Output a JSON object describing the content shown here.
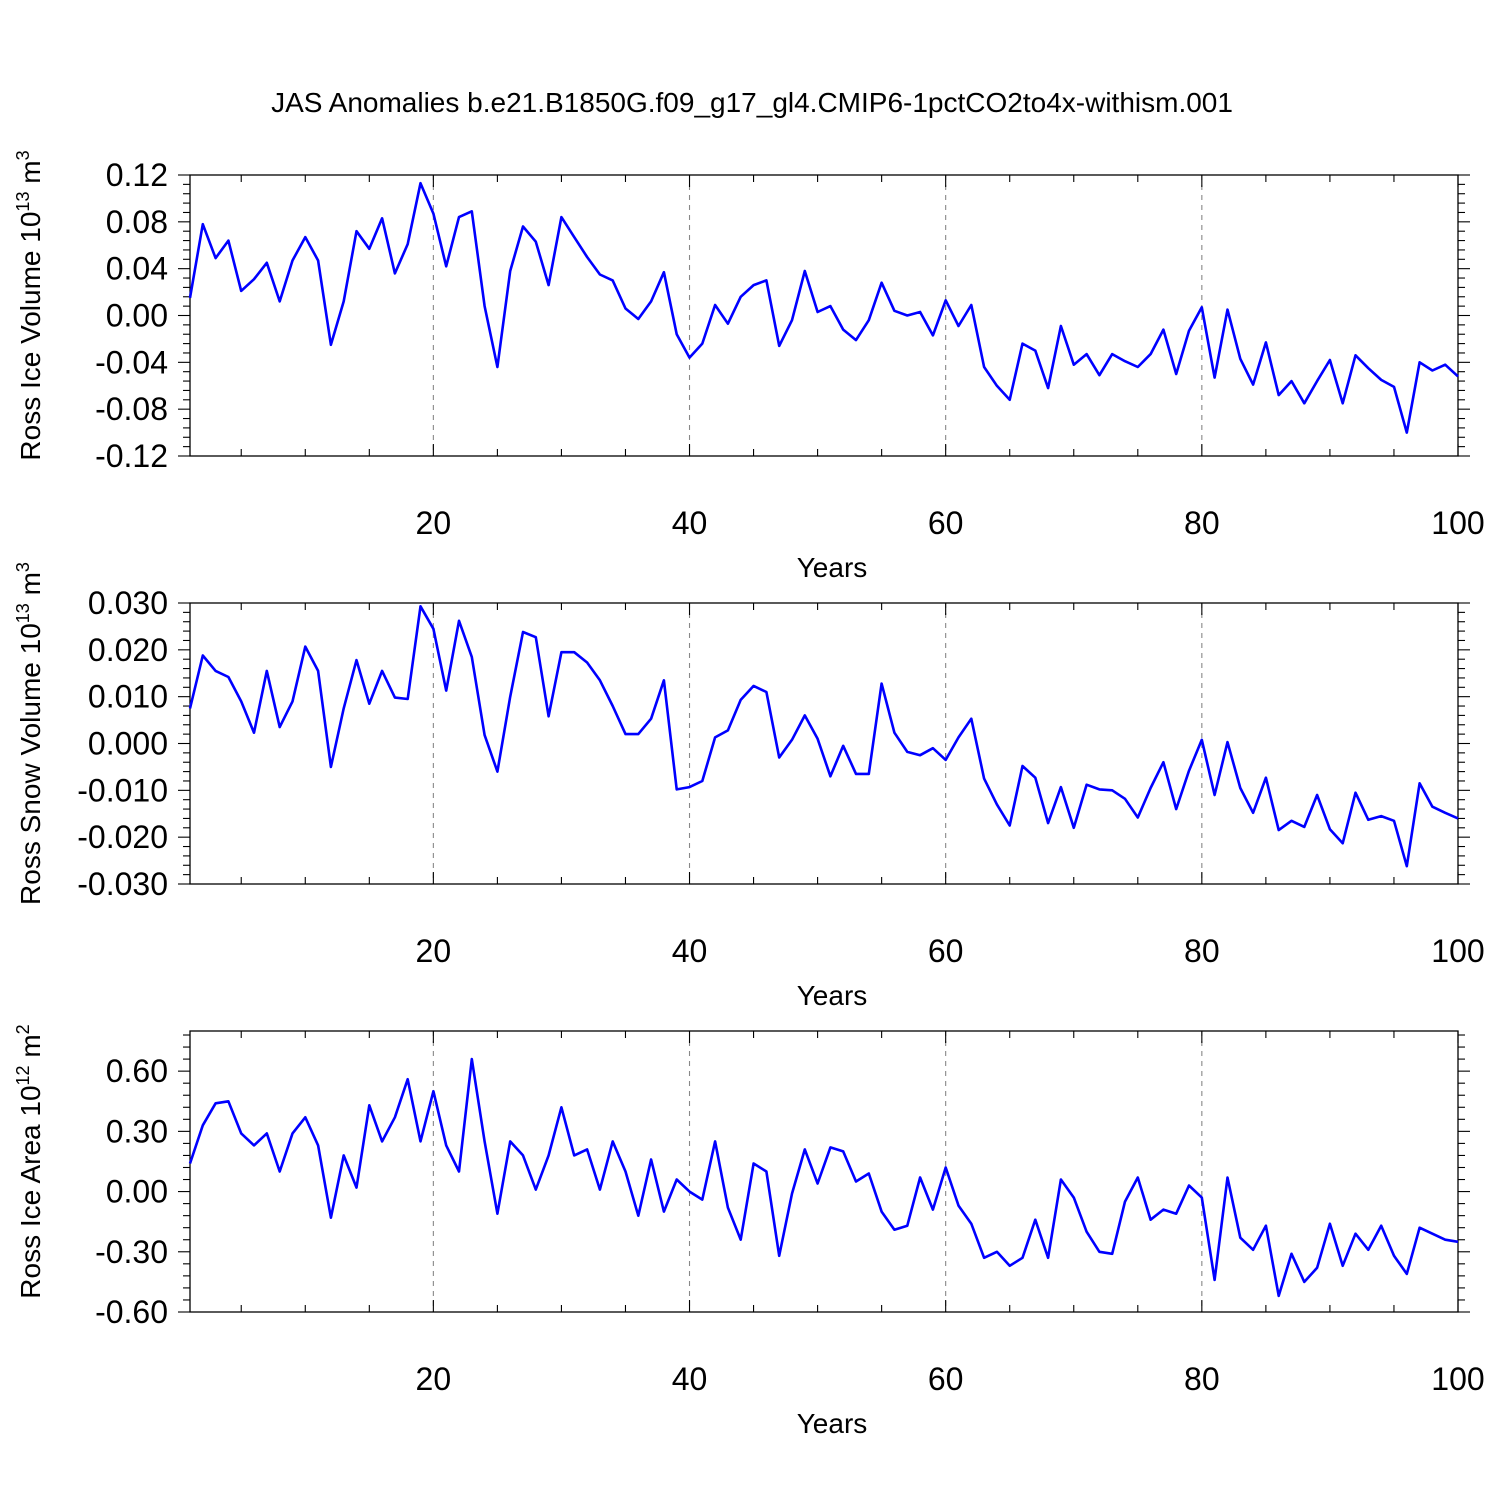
{
  "page": {
    "title": "JAS Anomalies b.e21.B1850G.f09_g17_gl4.CMIP6-1pctCO2to4x-withism.001"
  },
  "colors": {
    "series": "#0000ff",
    "grid": "#888888",
    "axes": "#000000",
    "background": "#ffffff"
  },
  "chart_data": [
    {
      "type": "line",
      "ylabel": "Ross Ice Volume",
      "ylabel_unit_base": "10",
      "ylabel_unit_exp": "13",
      "ylabel_unit_symbol": "m",
      "ylabel_unit_sym_exp": "3",
      "xlabel": "Years",
      "xlim": [
        1,
        100
      ],
      "ylim": [
        -0.12,
        0.12
      ],
      "xticks": [
        20,
        40,
        60,
        80,
        100
      ],
      "xtick_labels": [
        "20",
        "40",
        "60",
        "80",
        "100"
      ],
      "yticks": [
        -0.12,
        -0.08,
        -0.04,
        0.0,
        0.04,
        0.08,
        0.12
      ],
      "ytick_labels": [
        "-0.12",
        "-0.08",
        "-0.04",
        "0.00",
        "0.04",
        "0.08",
        "0.12"
      ],
      "grid": "vertical dashed at major x ticks",
      "series": [
        {
          "x": [
            1,
            2,
            3,
            4,
            5,
            6,
            7,
            8,
            9,
            10,
            11,
            12,
            13,
            14,
            15,
            16,
            17,
            18,
            19,
            20,
            21,
            22,
            23,
            24,
            25,
            26,
            27,
            28,
            29,
            30,
            31,
            32,
            33,
            34,
            35,
            36,
            37,
            38,
            39,
            40,
            41,
            42,
            43,
            44,
            45,
            46,
            47,
            48,
            49,
            50,
            51,
            52,
            53,
            54,
            55,
            56,
            57,
            58,
            59,
            60,
            61,
            62,
            63,
            64,
            65,
            66,
            67,
            68,
            69,
            70,
            71,
            72,
            73,
            74,
            75,
            76,
            77,
            78,
            79,
            80,
            81,
            82,
            83,
            84,
            85,
            86,
            87,
            88,
            89,
            90,
            91,
            92,
            93,
            94,
            95,
            96,
            97,
            98,
            99,
            100
          ],
          "values": [
            0.015,
            0.078,
            0.049,
            0.064,
            0.021,
            0.031,
            0.045,
            0.012,
            0.047,
            0.067,
            0.047,
            -0.025,
            0.012,
            0.072,
            0.057,
            0.083,
            0.036,
            0.061,
            0.113,
            0.087,
            0.042,
            0.084,
            0.089,
            0.008,
            -0.044,
            0.038,
            0.076,
            0.063,
            0.026,
            0.084,
            0.067,
            0.05,
            0.035,
            0.03,
            0.006,
            -0.003,
            0.012,
            0.037,
            -0.016,
            -0.036,
            -0.024,
            0.009,
            -0.007,
            0.016,
            0.026,
            0.03,
            -0.026,
            -0.004,
            0.038,
            0.003,
            0.008,
            -0.012,
            -0.021,
            -0.004,
            0.028,
            0.004,
            0.0,
            0.003,
            -0.017,
            0.013,
            -0.009,
            0.009,
            -0.044,
            -0.06,
            -0.072,
            -0.024,
            -0.03,
            -0.062,
            -0.009,
            -0.042,
            -0.033,
            -0.051,
            -0.033,
            -0.039,
            -0.044,
            -0.033,
            -0.012,
            -0.05,
            -0.013,
            0.007,
            -0.053,
            0.005,
            -0.037,
            -0.059,
            -0.023,
            -0.068,
            -0.056,
            -0.075,
            -0.056,
            -0.038,
            -0.075,
            -0.034,
            -0.045,
            -0.055,
            -0.061,
            -0.1,
            -0.04,
            -0.047,
            -0.042,
            -0.052
          ]
        }
      ]
    },
    {
      "type": "line",
      "ylabel": "Ross Snow Volume",
      "ylabel_unit_base": "10",
      "ylabel_unit_exp": "13",
      "ylabel_unit_symbol": "m",
      "ylabel_unit_sym_exp": "3",
      "xlabel": "Years",
      "xlim": [
        1,
        100
      ],
      "ylim": [
        -0.03,
        0.03
      ],
      "xticks": [
        20,
        40,
        60,
        80,
        100
      ],
      "xtick_labels": [
        "20",
        "40",
        "60",
        "80",
        "100"
      ],
      "yticks": [
        -0.03,
        -0.02,
        -0.01,
        0.0,
        0.01,
        0.02,
        0.03
      ],
      "ytick_labels": [
        "-0.030",
        "-0.020",
        "-0.010",
        "0.000",
        "0.010",
        "0.020",
        "0.030"
      ],
      "grid": "vertical dashed at major x ticks",
      "series": [
        {
          "x": [
            1,
            2,
            3,
            4,
            5,
            6,
            7,
            8,
            9,
            10,
            11,
            12,
            13,
            14,
            15,
            16,
            17,
            18,
            19,
            20,
            21,
            22,
            23,
            24,
            25,
            26,
            27,
            28,
            29,
            30,
            31,
            32,
            33,
            34,
            35,
            36,
            37,
            38,
            39,
            40,
            41,
            42,
            43,
            44,
            45,
            46,
            47,
            48,
            49,
            50,
            51,
            52,
            53,
            54,
            55,
            56,
            57,
            58,
            59,
            60,
            61,
            62,
            63,
            64,
            65,
            66,
            67,
            68,
            69,
            70,
            71,
            72,
            73,
            74,
            75,
            76,
            77,
            78,
            79,
            80,
            81,
            82,
            83,
            84,
            85,
            86,
            87,
            88,
            89,
            90,
            91,
            92,
            93,
            94,
            95,
            96,
            97,
            98,
            99,
            100
          ],
          "values": [
            0.0075,
            0.0188,
            0.0155,
            0.0142,
            0.009,
            0.0023,
            0.0155,
            0.0035,
            0.009,
            0.0207,
            0.0155,
            -0.005,
            0.0075,
            0.0178,
            0.0085,
            0.0155,
            0.0098,
            0.0095,
            0.0293,
            0.0245,
            0.0113,
            0.0262,
            0.0185,
            0.0018,
            -0.006,
            0.01,
            0.0238,
            0.0227,
            0.0058,
            0.0195,
            0.0195,
            0.0173,
            0.0135,
            0.008,
            0.002,
            0.002,
            0.0053,
            0.0135,
            -0.0098,
            -0.0093,
            -0.008,
            0.0013,
            0.0028,
            0.0093,
            0.0123,
            0.011,
            -0.003,
            0.0008,
            0.006,
            0.001,
            -0.007,
            -0.0005,
            -0.0065,
            -0.0065,
            0.0128,
            0.0023,
            -0.0018,
            -0.0025,
            -0.001,
            -0.0035,
            0.0013,
            0.0053,
            -0.0075,
            -0.013,
            -0.0175,
            -0.0048,
            -0.0073,
            -0.017,
            -0.0093,
            -0.018,
            -0.0088,
            -0.0098,
            -0.01,
            -0.0118,
            -0.0158,
            -0.0095,
            -0.004,
            -0.014,
            -0.0058,
            0.0008,
            -0.011,
            0.0003,
            -0.0095,
            -0.0148,
            -0.0073,
            -0.0185,
            -0.0165,
            -0.0178,
            -0.011,
            -0.0183,
            -0.0213,
            -0.0105,
            -0.0163,
            -0.0155,
            -0.0165,
            -0.0262,
            -0.0085,
            -0.0135,
            -0.0148,
            -0.016
          ]
        }
      ]
    },
    {
      "type": "line",
      "ylabel": "Ross Ice Area",
      "ylabel_unit_base": "10",
      "ylabel_unit_exp": "12",
      "ylabel_unit_symbol": "m",
      "ylabel_unit_sym_exp": "2",
      "xlabel": "Years",
      "xlim": [
        1,
        100
      ],
      "ylim": [
        -0.6,
        0.8
      ],
      "xticks": [
        20,
        40,
        60,
        80,
        100
      ],
      "xtick_labels": [
        "20",
        "40",
        "60",
        "80",
        "100"
      ],
      "yticks": [
        -0.6,
        -0.3,
        0.0,
        0.3,
        0.6
      ],
      "ytick_labels": [
        "-0.60",
        "-0.30",
        "0.00",
        "0.30",
        "0.60"
      ],
      "grid": "vertical dashed at major x ticks",
      "series": [
        {
          "x": [
            1,
            2,
            3,
            4,
            5,
            6,
            7,
            8,
            9,
            10,
            11,
            12,
            13,
            14,
            15,
            16,
            17,
            18,
            19,
            20,
            21,
            22,
            23,
            24,
            25,
            26,
            27,
            28,
            29,
            30,
            31,
            32,
            33,
            34,
            35,
            36,
            37,
            38,
            39,
            40,
            41,
            42,
            43,
            44,
            45,
            46,
            47,
            48,
            49,
            50,
            51,
            52,
            53,
            54,
            55,
            56,
            57,
            58,
            59,
            60,
            61,
            62,
            63,
            64,
            65,
            66,
            67,
            68,
            69,
            70,
            71,
            72,
            73,
            74,
            75,
            76,
            77,
            78,
            79,
            80,
            81,
            82,
            83,
            84,
            85,
            86,
            87,
            88,
            89,
            90,
            91,
            92,
            93,
            94,
            95,
            96,
            97,
            98,
            99,
            100
          ],
          "values": [
            0.14,
            0.33,
            0.44,
            0.45,
            0.29,
            0.23,
            0.29,
            0.1,
            0.29,
            0.37,
            0.23,
            -0.13,
            0.18,
            0.02,
            0.43,
            0.25,
            0.37,
            0.56,
            0.25,
            0.5,
            0.23,
            0.1,
            0.66,
            0.25,
            -0.11,
            0.25,
            0.18,
            0.01,
            0.18,
            0.42,
            0.18,
            0.21,
            0.01,
            0.25,
            0.1,
            -0.12,
            0.16,
            -0.1,
            0.06,
            0.0,
            -0.04,
            0.25,
            -0.08,
            -0.24,
            0.14,
            0.1,
            -0.32,
            -0.01,
            0.21,
            0.04,
            0.22,
            0.2,
            0.05,
            0.09,
            -0.1,
            -0.19,
            -0.17,
            0.07,
            -0.09,
            0.12,
            -0.07,
            -0.16,
            -0.33,
            -0.3,
            -0.37,
            -0.33,
            -0.14,
            -0.33,
            0.06,
            -0.03,
            -0.2,
            -0.3,
            -0.31,
            -0.05,
            0.07,
            -0.14,
            -0.09,
            -0.11,
            0.03,
            -0.03,
            -0.44,
            0.07,
            -0.23,
            -0.29,
            -0.17,
            -0.52,
            -0.31,
            -0.45,
            -0.38,
            -0.16,
            -0.37,
            -0.21,
            -0.29,
            -0.17,
            -0.32,
            -0.41,
            -0.18,
            -0.21,
            -0.24,
            -0.25
          ]
        }
      ]
    }
  ]
}
